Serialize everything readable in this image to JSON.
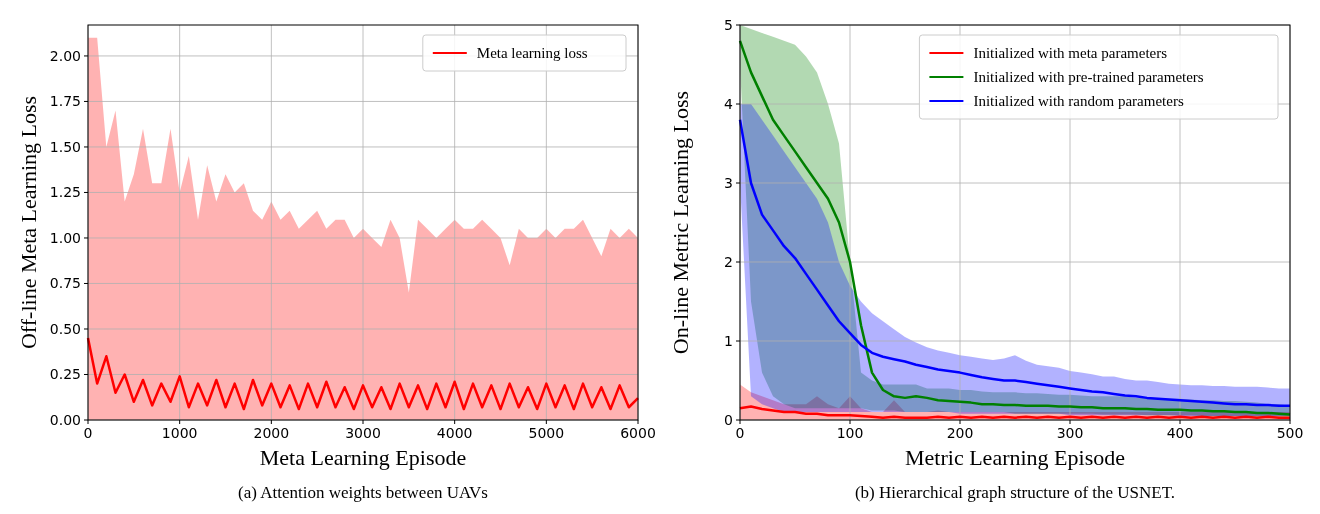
{
  "chart_data": [
    {
      "type": "line",
      "title": "(a)  Attention weights between UAVs",
      "xlabel": "Meta Learning Episode",
      "ylabel": "Off-line Meta Learning Loss",
      "grid": true,
      "legend": "top right",
      "xlim": [
        0,
        6000
      ],
      "ylim": [
        0,
        2.17
      ],
      "xticks": [
        0,
        1000,
        2000,
        3000,
        4000,
        5000,
        6000
      ],
      "yticks": [
        {
          "value": 0,
          "label": "0.00"
        },
        {
          "value": 0.25,
          "label": "0.25"
        },
        {
          "value": 0.5,
          "label": "0.50"
        },
        {
          "value": 0.75,
          "label": "0.75"
        },
        {
          "value": 1,
          "label": "1.00"
        },
        {
          "value": 1.25,
          "label": "1.25"
        },
        {
          "value": 1.5,
          "label": "1.50"
        },
        {
          "value": 1.75,
          "label": "1.75"
        },
        {
          "value": 2,
          "label": "2.00"
        }
      ],
      "x": [
        0,
        100,
        200,
        300,
        400,
        500,
        600,
        700,
        800,
        900,
        1000,
        1100,
        1200,
        1300,
        1400,
        1500,
        1600,
        1700,
        1800,
        1900,
        2000,
        2100,
        2200,
        2300,
        2400,
        2500,
        2600,
        2700,
        2800,
        2900,
        3000,
        3100,
        3200,
        3300,
        3400,
        3500,
        3600,
        3700,
        3800,
        3900,
        4000,
        4100,
        4200,
        4300,
        4400,
        4500,
        4600,
        4700,
        4800,
        4900,
        5000,
        5100,
        5200,
        5300,
        5400,
        5500,
        5600,
        5700,
        5800,
        5900,
        6000
      ],
      "series": [
        {
          "name": "Meta learning loss",
          "color": "#ff0000",
          "values": [
            0.45,
            0.2,
            0.35,
            0.15,
            0.25,
            0.1,
            0.22,
            0.08,
            0.2,
            0.1,
            0.24,
            0.07,
            0.2,
            0.08,
            0.22,
            0.07,
            0.2,
            0.06,
            0.22,
            0.08,
            0.2,
            0.07,
            0.19,
            0.06,
            0.2,
            0.07,
            0.21,
            0.07,
            0.18,
            0.06,
            0.19,
            0.07,
            0.18,
            0.06,
            0.2,
            0.07,
            0.19,
            0.06,
            0.2,
            0.07,
            0.21,
            0.06,
            0.2,
            0.07,
            0.19,
            0.06,
            0.2,
            0.07,
            0.18,
            0.06,
            0.2,
            0.07,
            0.19,
            0.06,
            0.2,
            0.07,
            0.18,
            0.06,
            0.19,
            0.07,
            0.12
          ],
          "lower": [
            0,
            0,
            0,
            0,
            0,
            0,
            0,
            0,
            0,
            0,
            0,
            0,
            0,
            0,
            0,
            0,
            0,
            0,
            0,
            0,
            0,
            0,
            0,
            0,
            0,
            0,
            0,
            0,
            0,
            0,
            0,
            0,
            0,
            0,
            0,
            0,
            0,
            0,
            0,
            0,
            0,
            0,
            0,
            0,
            0,
            0,
            0,
            0,
            0,
            0,
            0,
            0,
            0,
            0,
            0,
            0,
            0,
            0,
            0,
            0,
            0
          ],
          "upper": [
            2.1,
            2.1,
            1.5,
            1.7,
            1.2,
            1.35,
            1.6,
            1.3,
            1.3,
            1.6,
            1.25,
            1.45,
            1.1,
            1.4,
            1.2,
            1.35,
            1.25,
            1.3,
            1.15,
            1.1,
            1.2,
            1.1,
            1.15,
            1.05,
            1.1,
            1.15,
            1.05,
            1.1,
            1.1,
            1.0,
            1.05,
            1.0,
            0.95,
            1.1,
            1.0,
            0.7,
            1.1,
            1.05,
            1.0,
            1.05,
            1.1,
            1.05,
            1.05,
            1.1,
            1.05,
            1.0,
            0.85,
            1.05,
            1.0,
            1.0,
            1.05,
            1.0,
            1.05,
            1.05,
            1.1,
            1.0,
            0.9,
            1.05,
            1.0,
            1.05,
            1.0
          ]
        }
      ]
    },
    {
      "type": "line",
      "title": "(b)  Hierarchical graph structure of the USNET.",
      "xlabel": "Metric Learning Episode",
      "ylabel": "On-line Metric Learning Loss",
      "grid": true,
      "legend": "top right",
      "xlim": [
        0,
        500
      ],
      "ylim": [
        0,
        5
      ],
      "xticks": [
        0,
        100,
        200,
        300,
        400,
        500
      ],
      "yticks": [
        0,
        1,
        2,
        3,
        4,
        5
      ],
      "x": [
        0,
        10,
        20,
        30,
        40,
        50,
        60,
        70,
        80,
        90,
        100,
        110,
        120,
        130,
        140,
        150,
        160,
        170,
        180,
        190,
        200,
        210,
        220,
        230,
        240,
        250,
        260,
        270,
        280,
        290,
        300,
        310,
        320,
        330,
        340,
        350,
        360,
        370,
        380,
        390,
        400,
        410,
        420,
        430,
        440,
        450,
        460,
        470,
        480,
        490,
        500
      ],
      "series": [
        {
          "name": "Initialized with meta parameters",
          "color": "#ff0000",
          "values": [
            0.15,
            0.17,
            0.14,
            0.12,
            0.1,
            0.1,
            0.08,
            0.08,
            0.06,
            0.06,
            0.06,
            0.05,
            0.04,
            0.03,
            0.04,
            0.03,
            0.03,
            0.03,
            0.04,
            0.03,
            0.04,
            0.03,
            0.04,
            0.03,
            0.04,
            0.03,
            0.04,
            0.03,
            0.04,
            0.03,
            0.04,
            0.03,
            0.04,
            0.03,
            0.04,
            0.03,
            0.04,
            0.03,
            0.04,
            0.03,
            0.04,
            0.03,
            0.04,
            0.03,
            0.04,
            0.03,
            0.04,
            0.03,
            0.04,
            0.03,
            0.03
          ],
          "lower": [
            0,
            0,
            0,
            0,
            0,
            0,
            0,
            0,
            0,
            0,
            0,
            0,
            0,
            0,
            0,
            0,
            0,
            0,
            0,
            0,
            0,
            0,
            0,
            0,
            0,
            0,
            0,
            0,
            0,
            0,
            0,
            0,
            0,
            0,
            0,
            0,
            0,
            0,
            0,
            0,
            0,
            0,
            0,
            0,
            0,
            0,
            0,
            0,
            0,
            0,
            0
          ],
          "upper": [
            0.45,
            0.35,
            0.3,
            0.25,
            0.2,
            0.2,
            0.2,
            0.3,
            0.2,
            0.15,
            0.3,
            0.15,
            0.1,
            0.1,
            0.25,
            0.1,
            0.1,
            0.1,
            0.12,
            0.1,
            0.1,
            0.1,
            0.1,
            0.1,
            0.1,
            0.1,
            0.1,
            0.1,
            0.1,
            0.1,
            0.1,
            0.1,
            0.1,
            0.1,
            0.1,
            0.1,
            0.1,
            0.1,
            0.1,
            0.1,
            0.1,
            0.1,
            0.1,
            0.1,
            0.1,
            0.1,
            0.1,
            0.1,
            0.1,
            0.1,
            0.1
          ]
        },
        {
          "name": "Initialized with pre-trained parameters",
          "color": "#008000",
          "values": [
            4.8,
            4.4,
            4.1,
            3.8,
            3.6,
            3.4,
            3.2,
            3.0,
            2.8,
            2.5,
            2.0,
            1.2,
            0.6,
            0.38,
            0.3,
            0.28,
            0.3,
            0.28,
            0.25,
            0.24,
            0.23,
            0.22,
            0.2,
            0.2,
            0.19,
            0.19,
            0.18,
            0.18,
            0.18,
            0.17,
            0.17,
            0.16,
            0.16,
            0.15,
            0.15,
            0.15,
            0.14,
            0.14,
            0.13,
            0.13,
            0.13,
            0.12,
            0.12,
            0.11,
            0.11,
            0.1,
            0.1,
            0.09,
            0.09,
            0.08,
            0.07
          ],
          "lower": [
            4.5,
            1.5,
            0.6,
            0.3,
            0.2,
            0.15,
            0.15,
            0.15,
            0.15,
            0.15,
            0.15,
            0.15,
            0.12,
            0.12,
            0.12,
            0.1,
            0.1,
            0.1,
            0.1,
            0.1,
            0.1,
            0.1,
            0.1,
            0.1,
            0.1,
            0.08,
            0.08,
            0.08,
            0.08,
            0.08,
            0.08,
            0.08,
            0.08,
            0.07,
            0.07,
            0.07,
            0.07,
            0.06,
            0.06,
            0.06,
            0.06,
            0.06,
            0.05,
            0.05,
            0.05,
            0.05,
            0.04,
            0.04,
            0.04,
            0.04,
            0.04
          ],
          "upper": [
            5.0,
            4.95,
            4.9,
            4.85,
            4.8,
            4.75,
            4.6,
            4.4,
            4.0,
            3.5,
            2.0,
            0.6,
            0.5,
            0.45,
            0.45,
            0.45,
            0.45,
            0.4,
            0.4,
            0.4,
            0.38,
            0.38,
            0.36,
            0.35,
            0.35,
            0.35,
            0.34,
            0.34,
            0.33,
            0.32,
            0.32,
            0.31,
            0.3,
            0.3,
            0.3,
            0.3,
            0.28,
            0.28,
            0.28,
            0.27,
            0.27,
            0.26,
            0.25,
            0.25,
            0.24,
            0.24,
            0.23,
            0.22,
            0.2,
            0.2,
            0.18
          ]
        },
        {
          "name": "Initialized with random parameters",
          "color": "#0000ff",
          "values": [
            3.8,
            3.0,
            2.6,
            2.4,
            2.2,
            2.05,
            1.85,
            1.65,
            1.45,
            1.25,
            1.1,
            0.95,
            0.85,
            0.8,
            0.77,
            0.74,
            0.7,
            0.67,
            0.64,
            0.62,
            0.6,
            0.57,
            0.54,
            0.52,
            0.5,
            0.5,
            0.48,
            0.46,
            0.44,
            0.42,
            0.4,
            0.38,
            0.36,
            0.35,
            0.33,
            0.31,
            0.3,
            0.28,
            0.27,
            0.26,
            0.25,
            0.24,
            0.23,
            0.22,
            0.21,
            0.2,
            0.2,
            0.19,
            0.19,
            0.18,
            0.18
          ],
          "lower": [
            3.0,
            0.3,
            0.2,
            0.15,
            0.1,
            0.1,
            0.1,
            0.1,
            0.1,
            0.1,
            0.1,
            0.1,
            0.1,
            0.1,
            0.1,
            0.1,
            0.1,
            0.1,
            0.1,
            0.1,
            0.08,
            0.08,
            0.08,
            0.08,
            0.08,
            0.08,
            0.08,
            0.08,
            0.08,
            0.08,
            0.06,
            0.06,
            0.06,
            0.06,
            0.06,
            0.06,
            0.06,
            0.06,
            0.06,
            0.06,
            0.05,
            0.05,
            0.05,
            0.05,
            0.05,
            0.05,
            0.05,
            0.05,
            0.05,
            0.05,
            0.05
          ],
          "upper": [
            4.0,
            4.0,
            3.8,
            3.6,
            3.4,
            3.2,
            3.0,
            2.8,
            2.5,
            2.0,
            1.7,
            1.5,
            1.35,
            1.25,
            1.15,
            1.05,
            0.98,
            0.92,
            0.88,
            0.85,
            0.82,
            0.8,
            0.78,
            0.76,
            0.78,
            0.82,
            0.75,
            0.7,
            0.68,
            0.66,
            0.62,
            0.6,
            0.58,
            0.55,
            0.55,
            0.52,
            0.5,
            0.5,
            0.48,
            0.46,
            0.45,
            0.44,
            0.44,
            0.43,
            0.43,
            0.42,
            0.42,
            0.42,
            0.41,
            0.4,
            0.4
          ]
        }
      ]
    }
  ]
}
